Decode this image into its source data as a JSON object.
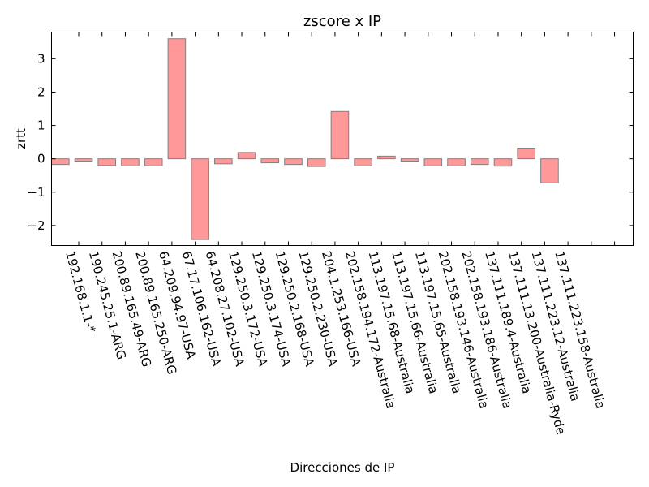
{
  "chart_data": {
    "type": "bar",
    "title": "zscore x IP",
    "xlabel": "Direcciones de IP",
    "ylabel": "zrtt",
    "ylim": [
      -2.6,
      3.8
    ],
    "yticks": [
      -2,
      -1,
      0,
      1,
      2,
      3
    ],
    "grid": false,
    "legend": "none",
    "bar_color": "#ff9999",
    "bar_edge_color": "#808080",
    "categories": [
      "192.168.1.1-*",
      "190.245.25.1-ARG",
      "200.89.165.49-ARG",
      "200.89.165.250-ARG",
      "64.209.94.97-USA",
      "67.17.106.162-USA",
      "64.208.27.102-USA",
      "129.250.3.172-USA",
      "129.250.3.174-USA",
      "129.250.2.168-USA",
      "129.250.2.230-USA",
      "204.1.253.166-USA",
      "202.158.194.172-Australia",
      "113.197.15.68-Australia",
      "113.197.15.66-Australia",
      "113.197.15.65-Australia",
      "202.158.193.146-Australia",
      "202.158.193.186-Australia",
      "137.111.189.4-Australia",
      "137.111.13.200-Australia-Ryde",
      "137.111.223.12-Australia",
      "137.111.223.158-Australia"
    ],
    "values": [
      -0.17,
      -0.07,
      -0.2,
      -0.21,
      -0.21,
      3.6,
      -2.42,
      -0.15,
      0.19,
      -0.12,
      -0.17,
      -0.23,
      1.42,
      -0.21,
      0.08,
      -0.07,
      -0.21,
      -0.21,
      -0.17,
      -0.22,
      0.32,
      -0.72
    ]
  }
}
